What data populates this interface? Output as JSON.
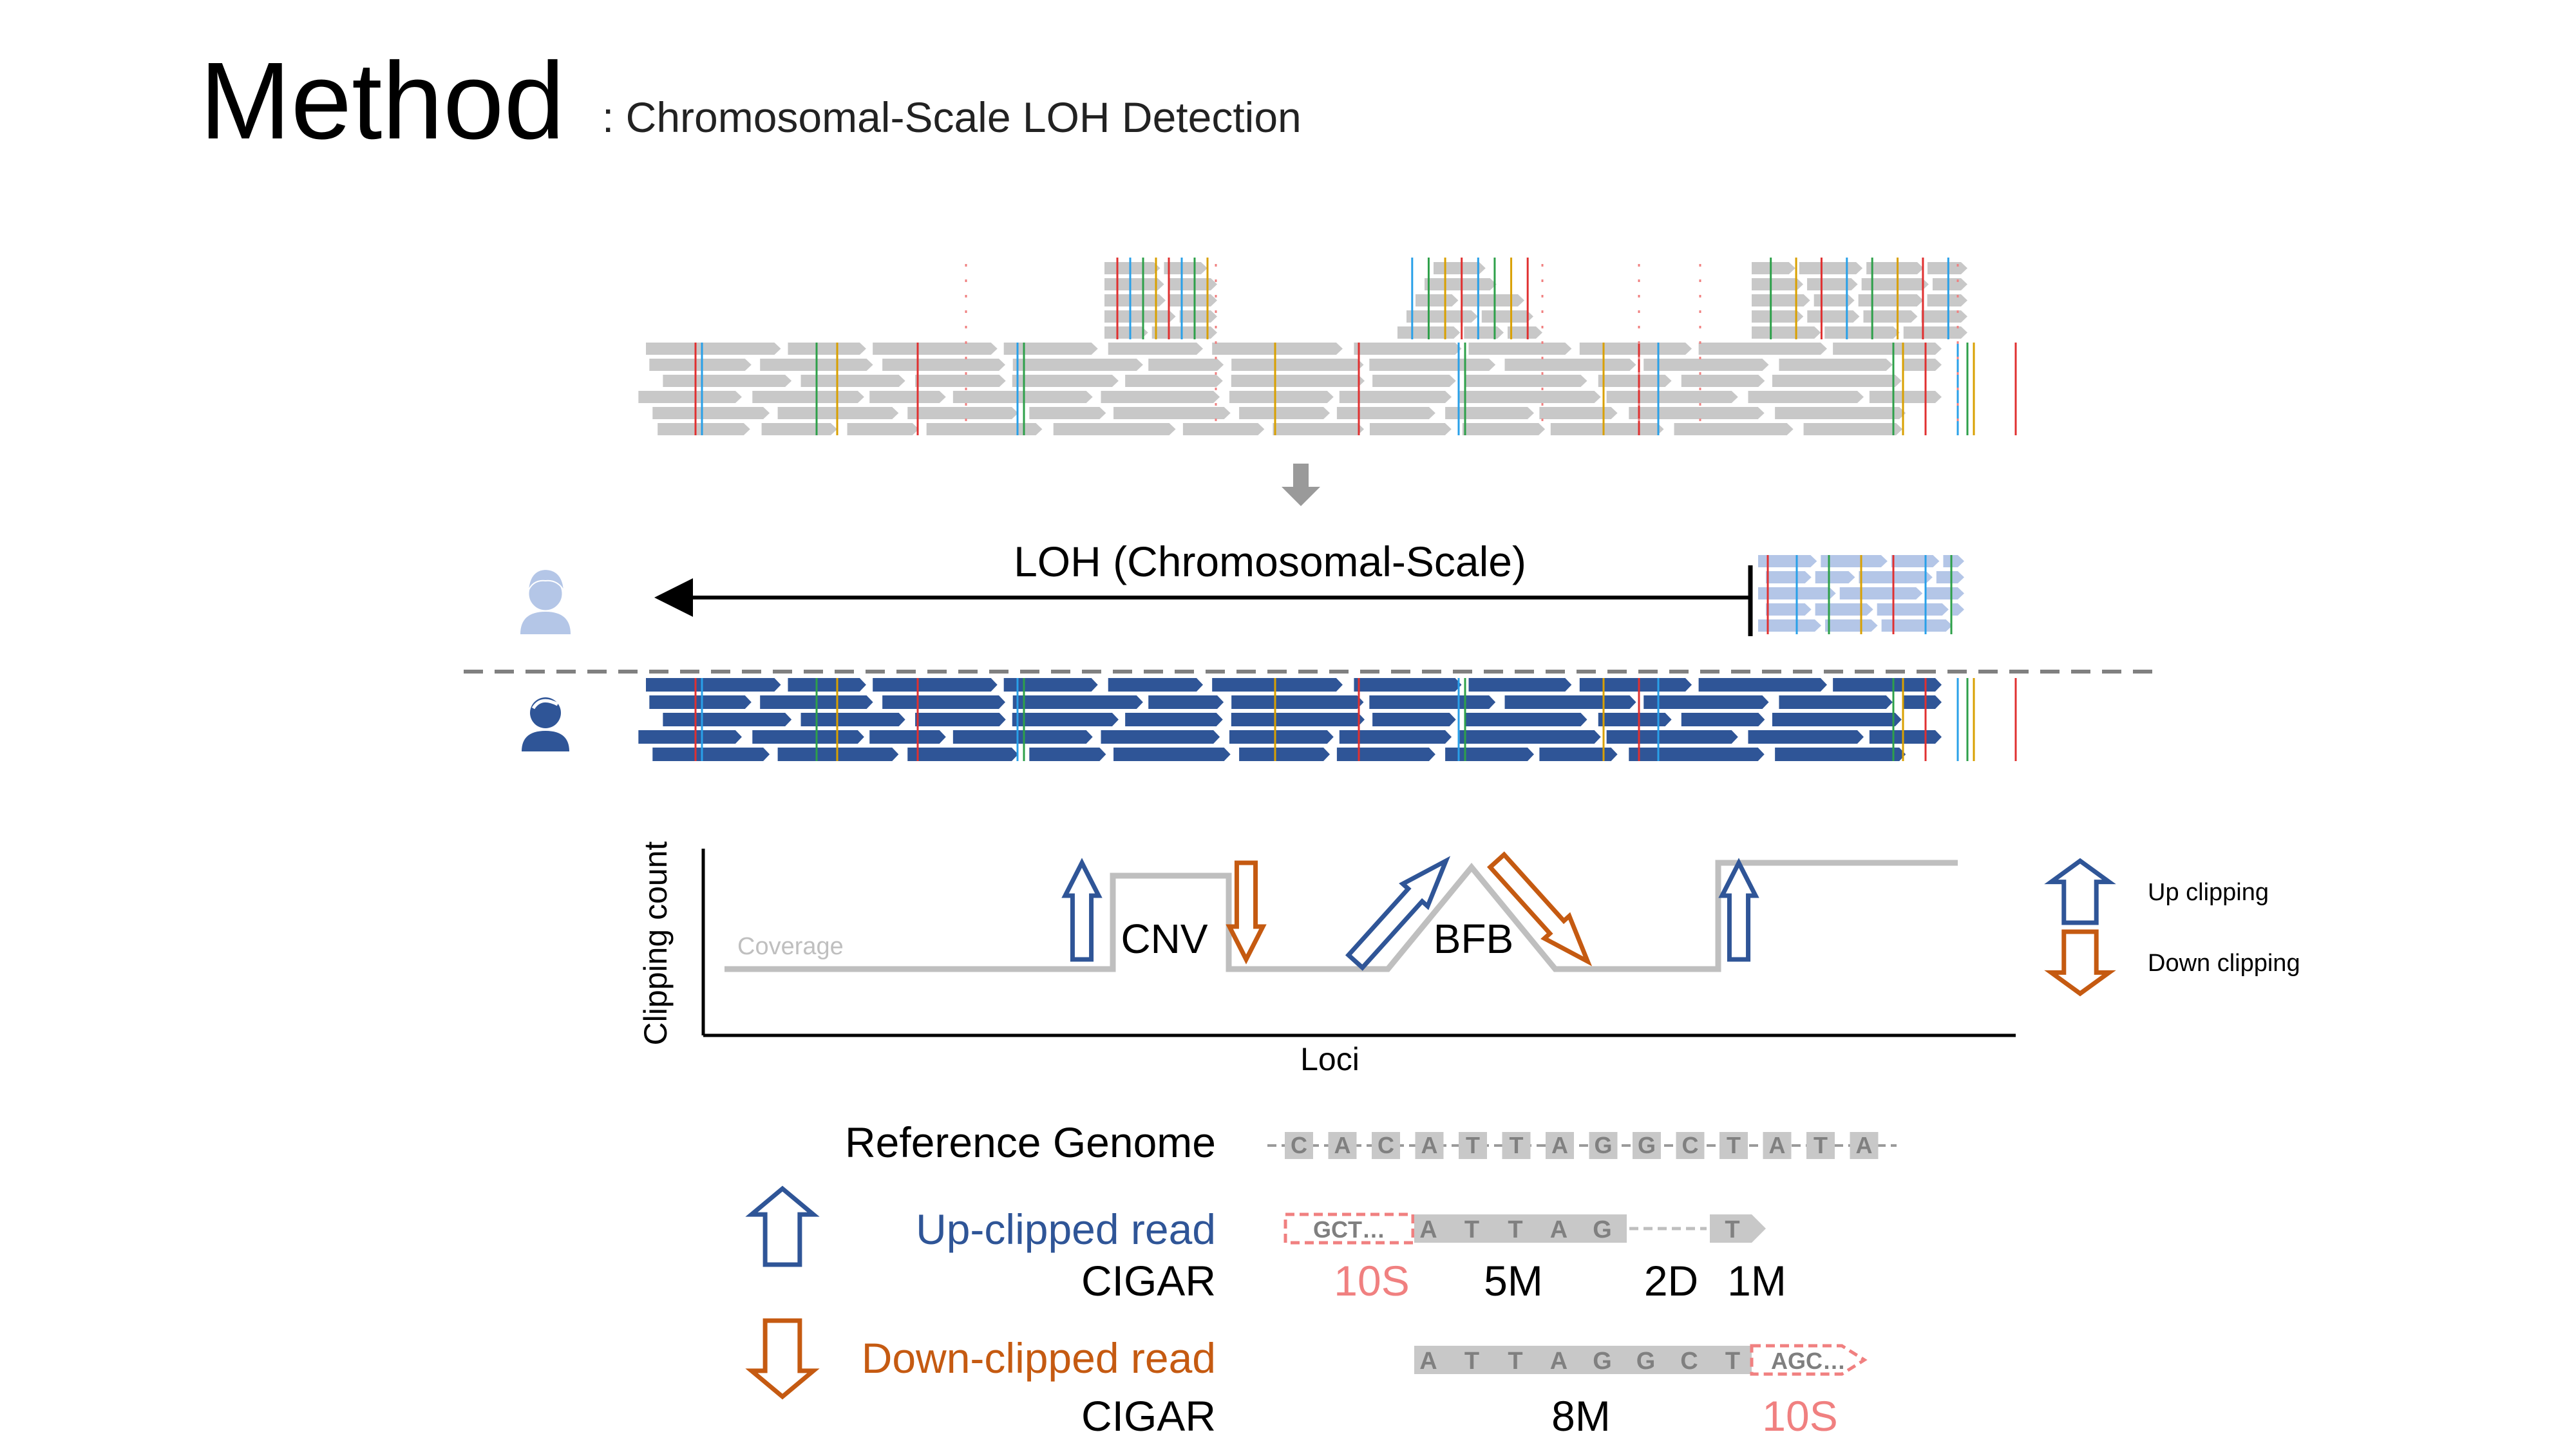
{
  "title": {
    "main": "Method",
    "subtitle": ": Chromosomal-Scale LOH Detection"
  },
  "loh": {
    "label": "LOH (Chromosomal-Scale)"
  },
  "icons": {
    "normal": "person-icon-light",
    "tumor": "person-icon-dark"
  },
  "clipping_plot": {
    "ylabel": "Clipping count",
    "xlabel": "Loci",
    "coverage_label": "Coverage",
    "cnv_label": "CNV",
    "bfb_label": "BFB"
  },
  "legend": {
    "up_label": "Up clipping",
    "down_label": "Down clipping"
  },
  "reference": {
    "label": "Reference Genome",
    "bases": [
      "C",
      "A",
      "C",
      "A",
      "T",
      "T",
      "A",
      "G",
      "G",
      "C",
      "T",
      "A",
      "T",
      "A"
    ]
  },
  "up_read": {
    "label": "Up-clipped read",
    "clip_text": "GCT…",
    "aligned_bases": [
      "A",
      "T",
      "T",
      "A",
      "G"
    ],
    "tail_base": "T",
    "cigar_label": "CIGAR",
    "cigar_clip": "10S",
    "cigar_match": "5M",
    "cigar_del": "2D",
    "cigar_tail": "1M"
  },
  "down_read": {
    "label": "Down-clipped read",
    "aligned_bases": [
      "A",
      "T",
      "T",
      "A",
      "G",
      "G",
      "C",
      "T"
    ],
    "clip_text": "AGC…",
    "cigar_label": "CIGAR",
    "cigar_match": "8M",
    "cigar_clip": "10S"
  },
  "colors": {
    "read_gray": "#c8c8c8",
    "read_light_blue": "#b4c6e7",
    "read_dark_blue": "#2f5597",
    "up_arrow": "#2f5597",
    "down_arrow": "#c55a11",
    "clip_red": "#f08080",
    "variant_red": "#e03030",
    "variant_blue": "#29a0e8",
    "variant_green": "#2ea04a",
    "variant_orange": "#d9a000"
  }
}
